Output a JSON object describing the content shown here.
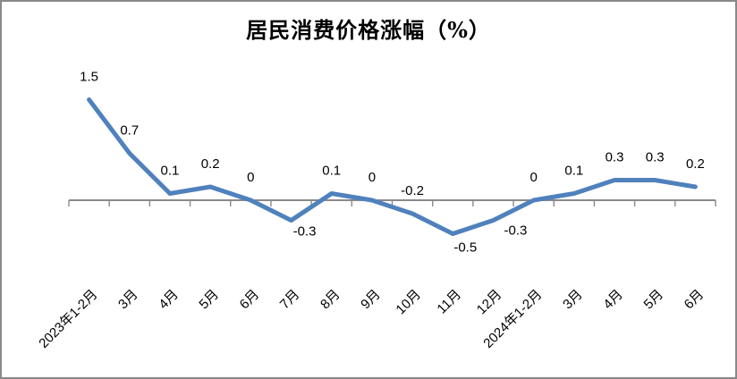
{
  "frame": {
    "background": "#ffffff",
    "border_color": "#898989"
  },
  "chart_data": {
    "type": "line",
    "title": "居民消费价格涨幅（%）",
    "categories": [
      "2023年1-2月",
      "3月",
      "4月",
      "5月",
      "6月",
      "7月",
      "8月",
      "9月",
      "10月",
      "11月",
      "12月",
      "2024年1-2月",
      "3月",
      "4月",
      "5月",
      "6月"
    ],
    "values": [
      1.5,
      0.7,
      0.1,
      0.2,
      0,
      -0.3,
      0.1,
      0,
      -0.2,
      -0.5,
      -0.3,
      0,
      0.1,
      0.3,
      0.3,
      0.2
    ],
    "data_labels": [
      "1.5",
      "0.7",
      "0.1",
      "0.2",
      "0",
      "-0.3",
      "0.1",
      "0",
      "-0.2",
      "-0.5",
      "-0.3",
      "0",
      "0.1",
      "0.3",
      "0.3",
      "0.2"
    ],
    "label_placement": [
      "above",
      "above",
      "above",
      "above",
      "above",
      "below",
      "above",
      "above",
      "above",
      "below",
      "below",
      "above",
      "above",
      "above",
      "above",
      "above"
    ],
    "label_offsets": {
      "5": [
        15,
        17
      ],
      "9": [
        14,
        20
      ],
      "10": [
        25,
        16
      ]
    },
    "series_name": "居民消费价格涨幅",
    "series_color": "#4f81bd",
    "axis_color": "#8a8a8a",
    "label_color": "#000000",
    "title_color": "#000000",
    "x_label_rotation": -45,
    "legend": "none",
    "gridlines": false,
    "y_axis_visible": false,
    "ylim": [
      -1,
      2
    ]
  }
}
